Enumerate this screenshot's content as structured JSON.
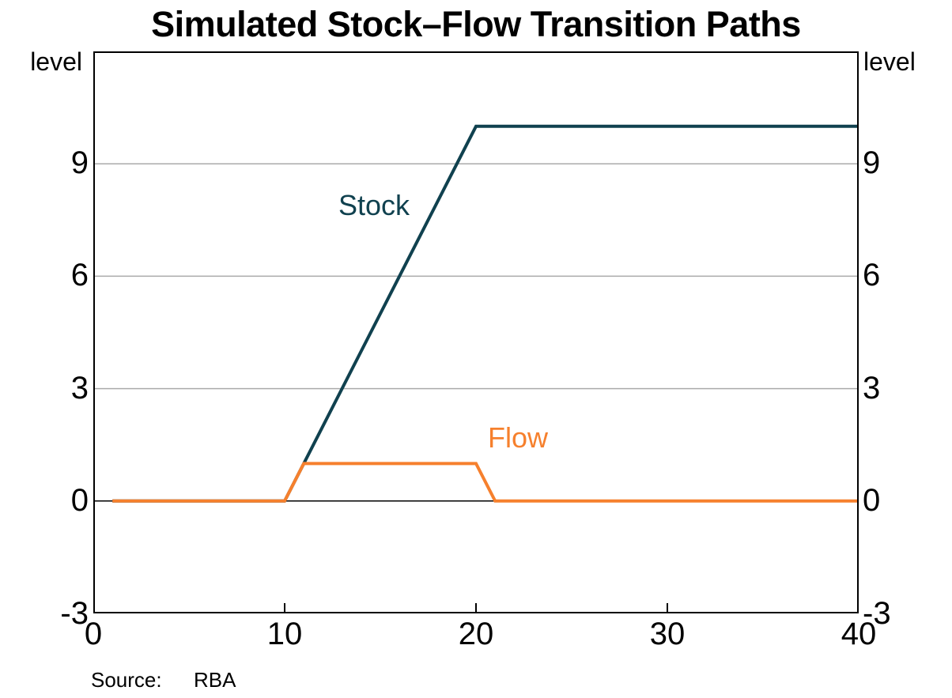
{
  "title": "Simulated Stock–Flow Transition Paths",
  "y_axis": {
    "unit_left": "level",
    "unit_right": "level",
    "tick_labels": [
      "9",
      "6",
      "3",
      "0",
      "-3"
    ]
  },
  "x_axis": {
    "tick_labels": [
      "0",
      "10",
      "20",
      "30",
      "40"
    ]
  },
  "series_labels": {
    "stock": "Stock",
    "flow": "Flow"
  },
  "source": {
    "label": "Source:",
    "value": "RBA"
  },
  "colors": {
    "stock": "#10414F",
    "flow": "#F6802D",
    "grid": "#AAAAAA",
    "axis": "#000000"
  },
  "chart_data": {
    "type": "line",
    "title": "Simulated Stock–Flow Transition Paths",
    "xlabel": "",
    "ylabel": "level",
    "x_range": [
      0,
      40
    ],
    "y_range": [
      -3,
      12
    ],
    "x_ticks": [
      0,
      10,
      20,
      30,
      40
    ],
    "y_ticks": [
      -3,
      0,
      3,
      6,
      9
    ],
    "gridlines_y": [
      3,
      6,
      9
    ],
    "zero_line": 0,
    "inner_x_ticks": [
      10,
      20,
      30
    ],
    "legend_position": "inline-labels",
    "source": "RBA",
    "series": [
      {
        "name": "Stock",
        "color": "#10414F",
        "x": [
          1,
          10,
          20,
          40
        ],
        "y": [
          0,
          0,
          10,
          10
        ],
        "description": "Stock is 0 until period 10, rises linearly by 1 per period to 10 at period 20, then stays at 10"
      },
      {
        "name": "Flow",
        "color": "#F6802D",
        "x": [
          1,
          10,
          11,
          20,
          21,
          40
        ],
        "y": [
          0,
          0,
          1,
          1,
          0,
          0
        ],
        "description": "Flow is 0 until period 10, equals 1 from period 11 to 20, then returns to 0 from period 21"
      }
    ]
  }
}
